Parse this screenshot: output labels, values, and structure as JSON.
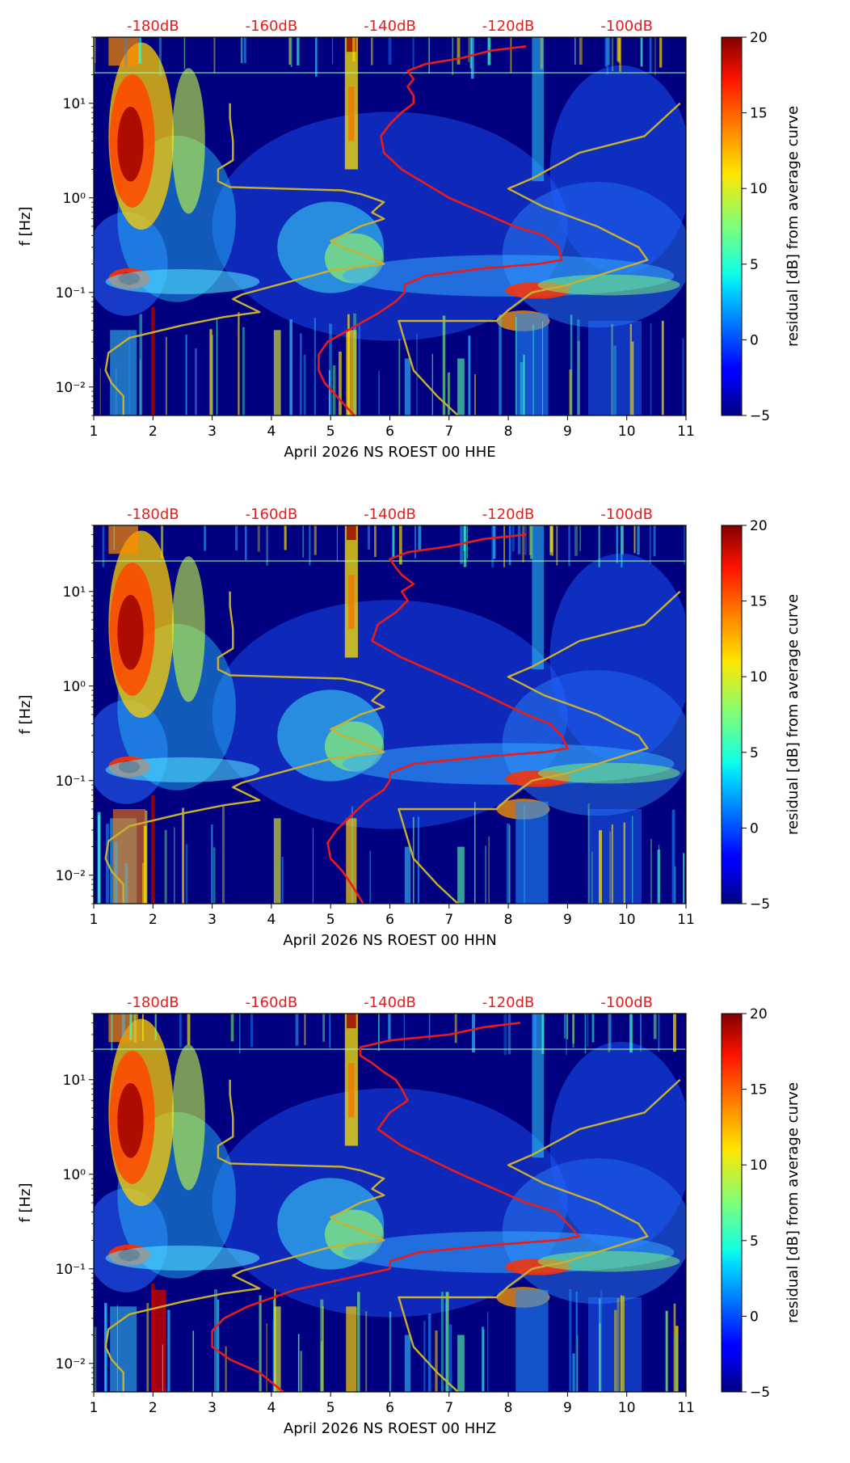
{
  "figure": {
    "colorbar_label": "residual [dB] from average curve",
    "colorbar_ticks": [
      "−5",
      "0",
      "5",
      "10",
      "15",
      "20"
    ],
    "y_label": "f [Hz]",
    "db_labels": [
      "-180dB",
      "-160dB",
      "-140dB",
      "-120dB",
      "-100dB"
    ]
  },
  "colors": {
    "background": "#000080",
    "reference_curve": "#c8b030",
    "median_curve": "#e81c1c",
    "db_text": "#e81c1c"
  },
  "chart_data": [
    {
      "type": "heatmap",
      "xlabel": "April 2026 NS ROEST 00 HHE",
      "ylabel": "f [Hz]",
      "xlim": [
        1,
        11
      ],
      "ylim": [
        0.005,
        50
      ],
      "yscale": "log",
      "x_ticks": [
        "1",
        "2",
        "3",
        "4",
        "5",
        "6",
        "7",
        "8",
        "9",
        "10",
        "11"
      ],
      "y_ticks": [
        "10⁻²",
        "10⁻¹",
        "10⁰",
        "10¹"
      ],
      "top_labels": [
        "-180dB",
        "-160dB",
        "-140dB",
        "-120dB",
        "-100dB"
      ],
      "colorbar": {
        "label": "residual [dB] from average curve",
        "range": [
          -5,
          20
        ],
        "ticks": [
          -5,
          0,
          5,
          10,
          15,
          20
        ]
      },
      "reference_curves": [
        {
          "x": [
            1.5,
            1.5,
            1.3,
            1.2,
            1.25,
            1.6,
            2.5,
            3.2,
            3.8,
            3.35,
            3.5,
            5.0,
            5.9,
            5.55,
            5.2,
            5.0,
            5.2,
            5.5,
            5.9,
            5.7,
            5.8,
            5.9,
            5.7,
            5.5,
            5.2,
            4.2,
            3.3,
            3.1,
            3.1,
            3.35,
            3.35,
            3.3,
            3.3
          ],
          "y": [
            0.005,
            0.008,
            0.011,
            0.015,
            0.023,
            0.033,
            0.045,
            0.055,
            0.062,
            0.085,
            0.095,
            0.17,
            0.2,
            0.25,
            0.3,
            0.35,
            0.4,
            0.5,
            0.6,
            0.7,
            0.8,
            0.9,
            1.0,
            1.1,
            1.2,
            1.25,
            1.3,
            1.5,
            2.0,
            2.5,
            4.0,
            7.0,
            10.0
          ]
        },
        {
          "x": [
            7.15,
            6.8,
            6.4,
            6.15,
            6.5,
            7.8,
            8.0,
            8.4,
            9.0,
            10.35,
            10.2,
            9.5,
            8.6,
            8.0,
            8.4,
            9.2,
            10.3,
            10.9
          ],
          "y": [
            0.005,
            0.008,
            0.015,
            0.05,
            0.05,
            0.05,
            0.065,
            0.1,
            0.12,
            0.22,
            0.3,
            0.5,
            0.8,
            1.25,
            1.6,
            3.0,
            4.5,
            10.0
          ]
        }
      ],
      "median_curve": {
        "x": [
          5.4,
          5.1,
          4.9,
          4.8,
          4.8,
          4.95,
          5.3,
          5.8,
          6.1,
          6.25,
          6.25,
          6.6,
          7.6,
          8.5,
          8.9,
          8.85,
          8.6,
          8.1,
          7.0,
          6.2,
          5.9,
          5.85,
          6.0,
          6.2,
          6.4,
          6.4,
          6.3,
          6.4,
          6.3,
          6.6,
          7.2,
          7.7,
          8.3
        ],
        "y": [
          0.005,
          0.008,
          0.011,
          0.015,
          0.022,
          0.03,
          0.04,
          0.06,
          0.08,
          0.1,
          0.12,
          0.15,
          0.18,
          0.2,
          0.22,
          0.3,
          0.4,
          0.5,
          1.0,
          2.0,
          3.0,
          4.5,
          6.0,
          8.0,
          10.0,
          12.0,
          15.0,
          18.0,
          22.0,
          26.0,
          30.0,
          36.0,
          40.0
        ]
      }
    },
    {
      "type": "heatmap",
      "xlabel": "April 2026 NS ROEST 00 HHN",
      "ylabel": "f [Hz]",
      "xlim": [
        1,
        11
      ],
      "ylim": [
        0.005,
        50
      ],
      "yscale": "log",
      "x_ticks": [
        "1",
        "2",
        "3",
        "4",
        "5",
        "6",
        "7",
        "8",
        "9",
        "10",
        "11"
      ],
      "y_ticks": [
        "10⁻²",
        "10⁻¹",
        "10⁰",
        "10¹"
      ],
      "top_labels": [
        "-180dB",
        "-160dB",
        "-140dB",
        "-120dB",
        "-100dB"
      ],
      "colorbar": {
        "label": "residual [dB] from average curve",
        "range": [
          -5,
          20
        ],
        "ticks": [
          -5,
          0,
          5,
          10,
          15,
          20
        ]
      },
      "reference_curves": [
        {
          "x": [
            1.5,
            1.5,
            1.3,
            1.2,
            1.25,
            1.6,
            2.5,
            3.2,
            3.8,
            3.35,
            3.5,
            5.0,
            5.9,
            5.55,
            5.2,
            5.0,
            5.2,
            5.5,
            5.9,
            5.7,
            5.8,
            5.9,
            5.7,
            5.5,
            5.2,
            4.2,
            3.3,
            3.1,
            3.1,
            3.35,
            3.35,
            3.3,
            3.3
          ],
          "y": [
            0.005,
            0.008,
            0.011,
            0.015,
            0.023,
            0.033,
            0.045,
            0.055,
            0.062,
            0.085,
            0.095,
            0.17,
            0.2,
            0.25,
            0.3,
            0.35,
            0.4,
            0.5,
            0.6,
            0.7,
            0.8,
            0.9,
            1.0,
            1.1,
            1.2,
            1.25,
            1.3,
            1.5,
            2.0,
            2.5,
            4.0,
            7.0,
            10.0
          ]
        },
        {
          "x": [
            7.15,
            6.8,
            6.4,
            6.15,
            6.5,
            7.8,
            8.0,
            8.4,
            9.0,
            10.35,
            10.2,
            9.5,
            8.6,
            8.0,
            8.4,
            9.2,
            10.3,
            10.9
          ],
          "y": [
            0.005,
            0.008,
            0.015,
            0.05,
            0.05,
            0.05,
            0.065,
            0.1,
            0.12,
            0.22,
            0.3,
            0.5,
            0.8,
            1.25,
            1.6,
            3.0,
            4.5,
            10.0
          ]
        }
      ],
      "median_curve": {
        "x": [
          5.55,
          5.35,
          5.2,
          5.0,
          4.95,
          5.1,
          5.3,
          5.6,
          5.9,
          6.0,
          6.0,
          6.4,
          7.6,
          8.6,
          9.0,
          8.9,
          8.7,
          8.3,
          7.3,
          6.2,
          5.7,
          5.8,
          6.1,
          6.3,
          6.2,
          6.4,
          6.2,
          6.1,
          6.0,
          6.3,
          7.0,
          7.6,
          8.3
        ],
        "y": [
          0.005,
          0.008,
          0.011,
          0.015,
          0.022,
          0.03,
          0.04,
          0.06,
          0.08,
          0.1,
          0.12,
          0.15,
          0.18,
          0.2,
          0.22,
          0.3,
          0.4,
          0.5,
          1.0,
          2.0,
          3.0,
          4.5,
          6.0,
          8.0,
          10.0,
          12.0,
          15.0,
          18.0,
          22.0,
          26.0,
          30.0,
          36.0,
          40.0
        ]
      }
    },
    {
      "type": "heatmap",
      "xlabel": "April 2026 NS ROEST 00 HHZ",
      "ylabel": "f [Hz]",
      "xlim": [
        1,
        11
      ],
      "ylim": [
        0.005,
        50
      ],
      "yscale": "log",
      "x_ticks": [
        "1",
        "2",
        "3",
        "4",
        "5",
        "6",
        "7",
        "8",
        "9",
        "10",
        "11"
      ],
      "y_ticks": [
        "10⁻²",
        "10⁻¹",
        "10⁰",
        "10¹"
      ],
      "top_labels": [
        "-180dB",
        "-160dB",
        "-140dB",
        "-120dB",
        "-100dB"
      ],
      "colorbar": {
        "label": "residual [dB] from average curve",
        "range": [
          -5,
          20
        ],
        "ticks": [
          -5,
          0,
          5,
          10,
          15,
          20
        ]
      },
      "reference_curves": [
        {
          "x": [
            1.5,
            1.5,
            1.3,
            1.2,
            1.25,
            1.6,
            2.5,
            3.2,
            3.8,
            3.35,
            3.5,
            5.0,
            5.9,
            5.55,
            5.2,
            5.0,
            5.2,
            5.5,
            5.9,
            5.7,
            5.8,
            5.9,
            5.7,
            5.5,
            5.2,
            4.2,
            3.3,
            3.1,
            3.1,
            3.35,
            3.35,
            3.3,
            3.3
          ],
          "y": [
            0.005,
            0.008,
            0.011,
            0.015,
            0.023,
            0.033,
            0.045,
            0.055,
            0.062,
            0.085,
            0.095,
            0.17,
            0.2,
            0.25,
            0.3,
            0.35,
            0.4,
            0.5,
            0.6,
            0.7,
            0.8,
            0.9,
            1.0,
            1.1,
            1.2,
            1.25,
            1.3,
            1.5,
            2.0,
            2.5,
            4.0,
            7.0,
            10.0
          ]
        },
        {
          "x": [
            7.15,
            6.8,
            6.4,
            6.15,
            6.5,
            7.8,
            8.0,
            8.4,
            9.0,
            10.35,
            10.2,
            9.5,
            8.6,
            8.0,
            8.4,
            9.2,
            10.3,
            10.9
          ],
          "y": [
            0.005,
            0.008,
            0.015,
            0.05,
            0.05,
            0.05,
            0.065,
            0.1,
            0.12,
            0.22,
            0.3,
            0.5,
            0.8,
            1.25,
            1.6,
            3.0,
            4.5,
            10.0
          ]
        }
      ],
      "median_curve": {
        "x": [
          4.2,
          3.8,
          3.3,
          3.0,
          3.0,
          3.2,
          3.6,
          4.4,
          5.3,
          6.0,
          6.0,
          6.5,
          7.8,
          8.8,
          9.2,
          9.0,
          8.8,
          8.3,
          7.2,
          6.2,
          5.8,
          6.0,
          6.3,
          6.2,
          6.1,
          5.9,
          5.7,
          5.5,
          5.5,
          6.0,
          7.0,
          7.6,
          8.2
        ],
        "y": [
          0.005,
          0.008,
          0.011,
          0.015,
          0.022,
          0.03,
          0.04,
          0.06,
          0.08,
          0.1,
          0.12,
          0.15,
          0.18,
          0.2,
          0.22,
          0.3,
          0.4,
          0.5,
          1.0,
          2.0,
          3.0,
          4.5,
          6.0,
          8.0,
          10.0,
          12.0,
          15.0,
          18.0,
          22.0,
          26.0,
          30.0,
          36.0,
          40.0
        ]
      }
    }
  ]
}
